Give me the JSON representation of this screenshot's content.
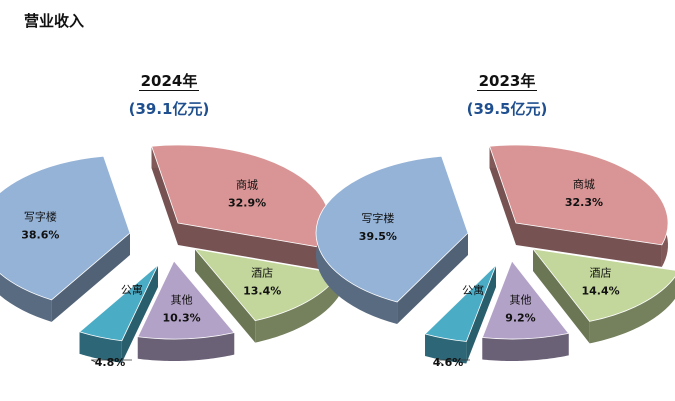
{
  "page_title": "营业收入",
  "colors": {
    "商城": "#d99595",
    "酒店": "#c3d69b",
    "其他": "#b3a2c7",
    "公寓": "#4bacc6",
    "写字楼": "#95b3d7"
  },
  "chart_data": [
    {
      "type": "pie",
      "title": "2024年",
      "subtitle": "(39.1亿元)",
      "slices": [
        {
          "label": "商城",
          "value": 32.9,
          "value_label": "32.9%"
        },
        {
          "label": "酒店",
          "value": 13.4,
          "value_label": "13.4%"
        },
        {
          "label": "其他",
          "value": 10.3,
          "value_label": "10.3%"
        },
        {
          "label": "公寓",
          "value": 4.8,
          "value_label": "4.8%"
        },
        {
          "label": "写字楼",
          "value": 38.6,
          "value_label": "38.6%"
        }
      ]
    },
    {
      "type": "pie",
      "title": "2023年",
      "subtitle": "(39.5亿元)",
      "slices": [
        {
          "label": "商城",
          "value": 32.3,
          "value_label": "32.3%"
        },
        {
          "label": "酒店",
          "value": 14.4,
          "value_label": "14.4%"
        },
        {
          "label": "其他",
          "value": 9.2,
          "value_label": "9.2%"
        },
        {
          "label": "公寓",
          "value": 4.6,
          "value_label": "4.6%"
        },
        {
          "label": "写字楼",
          "value": 39.5,
          "value_label": "39.5%"
        }
      ]
    }
  ]
}
